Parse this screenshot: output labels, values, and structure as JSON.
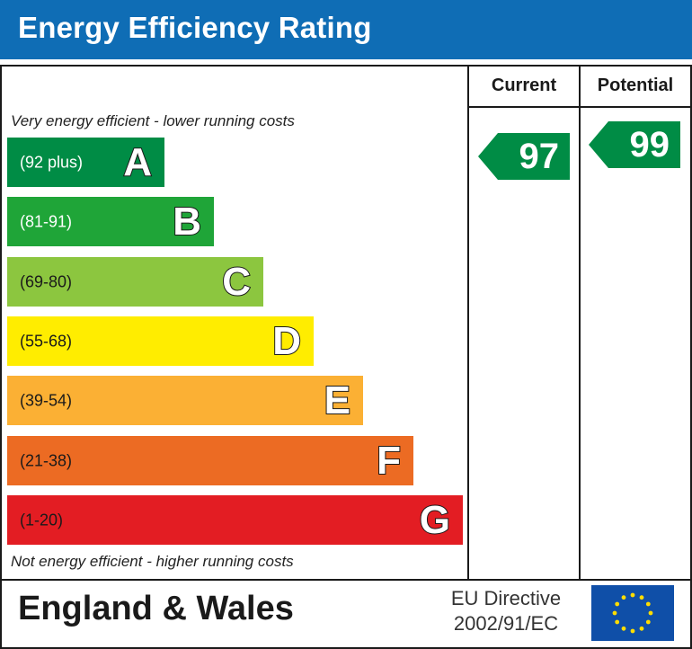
{
  "header": {
    "title": "Energy Efficiency Rating"
  },
  "columns": {
    "current": "Current",
    "potential": "Potential"
  },
  "notes": {
    "top": "Very energy efficient - lower running costs",
    "bottom": "Not energy efficient - higher running costs"
  },
  "chart_data": {
    "type": "bar",
    "title": "Energy Efficiency Rating",
    "bands": [
      {
        "letter": "A",
        "range": "(92 plus)",
        "color": "#008c45",
        "text_color": "#ffffff"
      },
      {
        "letter": "B",
        "range": "(81-91)",
        "color": "#1fa538",
        "text_color": "#ffffff"
      },
      {
        "letter": "C",
        "range": "(69-80)",
        "color": "#8cc63f",
        "text_color": "#1a1a1a"
      },
      {
        "letter": "D",
        "range": "(55-68)",
        "color": "#ffed00",
        "text_color": "#1a1a1a"
      },
      {
        "letter": "E",
        "range": "(39-54)",
        "color": "#fbb034",
        "text_color": "#1a1a1a"
      },
      {
        "letter": "F",
        "range": "(21-38)",
        "color": "#ec6b23",
        "text_color": "#1a1a1a"
      },
      {
        "letter": "G",
        "range": "(1-20)",
        "color": "#e31d23",
        "text_color": "#1a1a1a"
      }
    ],
    "current": {
      "value": 97,
      "band": "A",
      "color": "#008c45"
    },
    "potential": {
      "value": 99,
      "band": "A",
      "color": "#008c45"
    }
  },
  "footer": {
    "region": "England & Wales",
    "directive_line1": "EU Directive",
    "directive_line2": "2002/91/EC",
    "flag_icon": "eu-flag-icon"
  }
}
